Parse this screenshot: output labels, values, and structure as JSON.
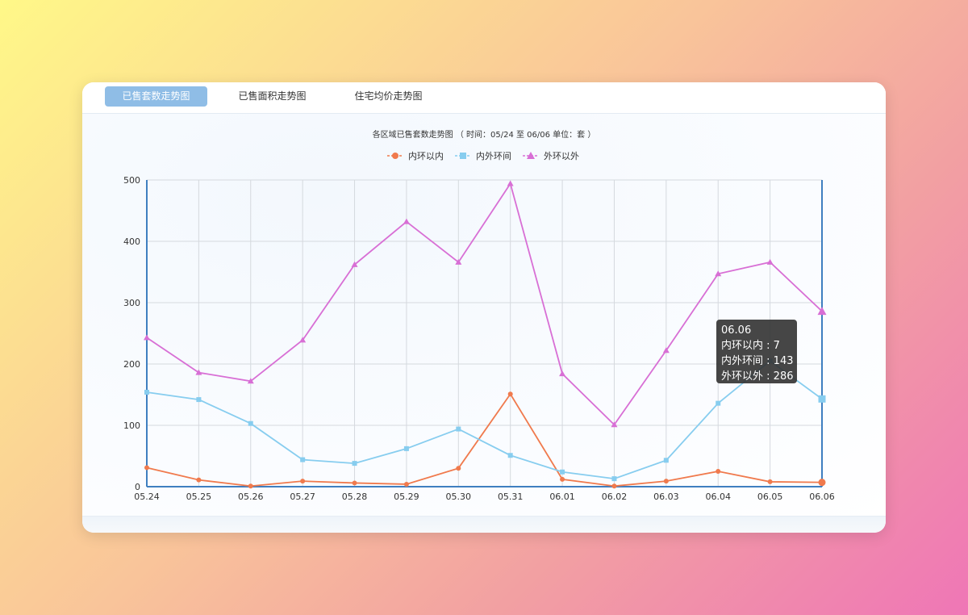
{
  "tabs": [
    {
      "label": "已售套数走势图",
      "active": true
    },
    {
      "label": "已售面积走势图",
      "active": false
    },
    {
      "label": "住宅均价走势图",
      "active": false
    }
  ],
  "tooltip": {
    "title": "06.06",
    "rows": [
      {
        "name": "内环以内",
        "value": 7
      },
      {
        "name": "内外环间",
        "value": 143
      },
      {
        "name": "外环以外",
        "value": 286
      }
    ]
  },
  "chart_data": {
    "type": "line",
    "title": "各区域已售套数走势图 （ 时间：05/24 至 06/06    单位：套 ）",
    "categories": [
      "05.24",
      "05.25",
      "05.26",
      "05.27",
      "05.28",
      "05.29",
      "05.30",
      "05.31",
      "06.01",
      "06.02",
      "06.03",
      "06.04",
      "06.05",
      "06.06"
    ],
    "ylim": [
      0,
      500
    ],
    "yticks": [
      0,
      100,
      200,
      300,
      400,
      500
    ],
    "grid": true,
    "legend_position": "top-center",
    "series": [
      {
        "name": "内环以内",
        "color": "#f07a4d",
        "marker": "circle",
        "values": [
          31,
          11,
          1,
          9,
          6,
          4,
          30,
          151,
          12,
          1,
          9,
          25,
          8,
          7
        ]
      },
      {
        "name": "内外环间",
        "color": "#87cdef",
        "marker": "square",
        "values": [
          154,
          142,
          103,
          44,
          38,
          62,
          94,
          51,
          24,
          13,
          43,
          136,
          205,
          143
        ]
      },
      {
        "name": "外环以外",
        "color": "#d86fd5",
        "marker": "triangle",
        "values": [
          243,
          186,
          172,
          239,
          362,
          432,
          366,
          494,
          184,
          101,
          222,
          347,
          366,
          286
        ]
      }
    ]
  }
}
